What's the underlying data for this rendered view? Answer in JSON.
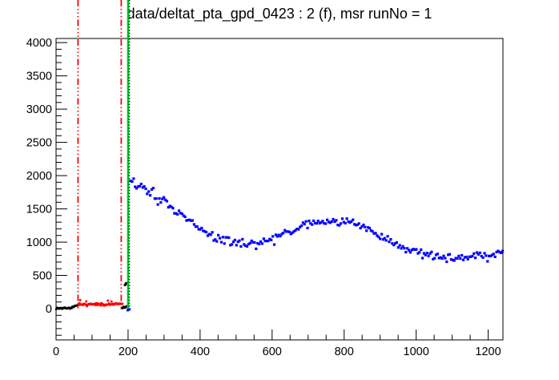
{
  "chart_data": {
    "type": "scatter",
    "title": "data/deltat_pta_gpd_0423 : 2 (f), msr runNo = 1",
    "xlim": [
      0,
      1241
    ],
    "ylim": [
      -470,
      4062
    ],
    "background": "#ffffff",
    "frame_color": "#000000",
    "grid": false,
    "legend": "none",
    "x_axis": {
      "label": "",
      "major_ticks": [
        0,
        200,
        400,
        600,
        800,
        1000,
        1200
      ],
      "labels": [
        "0",
        "200",
        "400",
        "600",
        "800",
        "1000",
        "1200"
      ],
      "minor_step": 50,
      "minor_range": [
        50,
        1200
      ]
    },
    "y_axis": {
      "label": "",
      "major_ticks": [
        0,
        500,
        1000,
        1500,
        2000,
        2500,
        3000,
        3500,
        4000
      ],
      "labels": [
        "0",
        "500",
        "1000",
        "1500",
        "2000",
        "2500",
        "3000",
        "3500",
        "4000"
      ],
      "minor_step": 100,
      "minor_range": [
        -400,
        4000
      ]
    },
    "series": [
      {
        "name": "pre-t0-black-flat",
        "color": "#000000",
        "marker": 2.4,
        "step": 1.5,
        "noise": 16,
        "outlier_chance": 0,
        "anchors": [
          [
            0,
            6
          ],
          [
            40,
            10
          ],
          [
            50,
            28
          ],
          [
            60,
            50
          ]
        ]
      },
      {
        "name": "background-window-red",
        "color": "#ff0000",
        "marker": 2.6,
        "step": 1.7,
        "noise": 26,
        "outlier_chance": 0.04,
        "spike_chance": 0.04,
        "spike": 55,
        "anchors": [
          [
            62,
            52
          ],
          [
            100,
            60
          ],
          [
            150,
            66
          ],
          [
            186,
            70
          ]
        ]
      },
      {
        "name": "t0-region-black-flat",
        "color": "#000000",
        "marker": 2.4,
        "step": 1.3,
        "noise": 24,
        "outlier_chance": 0,
        "anchors": [
          [
            182,
            15
          ],
          [
            197,
            25
          ]
        ]
      },
      {
        "name": "t0-spike-black",
        "color": "#000000",
        "marker": 2.6,
        "step": 1.0,
        "noise": 16,
        "outlier_chance": 0,
        "anchors": [
          [
            191,
            350
          ],
          [
            196,
            378
          ]
        ]
      },
      {
        "name": "first-good-bin-blue",
        "color": "#0000ff",
        "marker": 3.0,
        "step": 2.4,
        "noise": 8,
        "outlier_chance": 0,
        "anchors": [
          [
            199,
            -18
          ],
          [
            204,
            -10
          ]
        ]
      },
      {
        "name": "muon-decay-histogram-blue",
        "color": "#0000ff",
        "marker": 3.2,
        "step": 4.2,
        "noise": 75,
        "outlier_chance": 0.05,
        "anchors": [
          [
            207,
            1900
          ],
          [
            213,
            1975
          ],
          [
            218,
            1880
          ],
          [
            230,
            1850
          ],
          [
            250,
            1790
          ],
          [
            270,
            1715
          ],
          [
            290,
            1640
          ],
          [
            310,
            1560
          ],
          [
            330,
            1480
          ],
          [
            350,
            1395
          ],
          [
            370,
            1310
          ],
          [
            390,
            1230
          ],
          [
            410,
            1160
          ],
          [
            430,
            1100
          ],
          [
            450,
            1058
          ],
          [
            470,
            1025
          ],
          [
            490,
            1000
          ],
          [
            510,
            988
          ],
          [
            530,
            978
          ],
          [
            550,
            980
          ],
          [
            570,
            1005
          ],
          [
            590,
            1040
          ],
          [
            610,
            1078
          ],
          [
            630,
            1118
          ],
          [
            650,
            1160
          ],
          [
            670,
            1205
          ],
          [
            690,
            1245
          ],
          [
            710,
            1280
          ],
          [
            730,
            1300
          ],
          [
            750,
            1312
          ],
          [
            770,
            1316
          ],
          [
            790,
            1312
          ],
          [
            810,
            1296
          ],
          [
            830,
            1268
          ],
          [
            850,
            1228
          ],
          [
            870,
            1180
          ],
          [
            890,
            1120
          ],
          [
            910,
            1058
          ],
          [
            930,
            1000
          ],
          [
            950,
            948
          ],
          [
            970,
            902
          ],
          [
            990,
            860
          ],
          [
            1010,
            826
          ],
          [
            1030,
            800
          ],
          [
            1050,
            783
          ],
          [
            1070,
            770
          ],
          [
            1090,
            762
          ],
          [
            1110,
            760
          ],
          [
            1130,
            764
          ],
          [
            1150,
            774
          ],
          [
            1170,
            788
          ],
          [
            1190,
            804
          ],
          [
            1210,
            820
          ],
          [
            1230,
            834
          ],
          [
            1241,
            842
          ]
        ]
      }
    ],
    "vlines": [
      {
        "name": "range-marker-left-red-line",
        "x": 61,
        "color": "#ff0000",
        "style": "dashdotdot",
        "width": 1.8
      },
      {
        "name": "range-marker-right-red-line",
        "x": 181,
        "color": "#ff0000",
        "style": "dashdotdot",
        "width": 1.8
      },
      {
        "name": "t0-green-line",
        "x": 200,
        "color": "#00cc00",
        "style": "solid",
        "width": 2.5
      },
      {
        "name": "first-good-bin-blue-line",
        "x": 203.5,
        "color": "#0000ff",
        "style": "dotted",
        "width": 1.6
      }
    ]
  }
}
